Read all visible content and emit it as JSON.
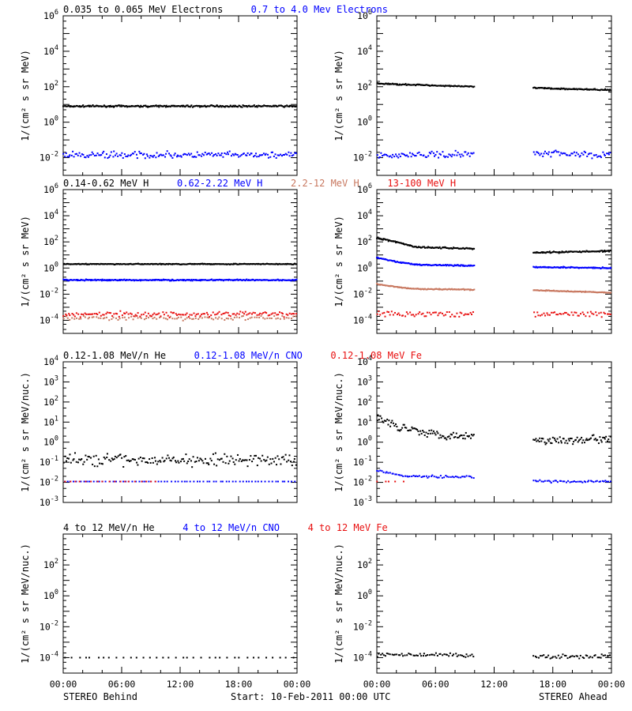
{
  "colors": {
    "black": "#000000",
    "blue": "#0000ff",
    "tan": "#c87860",
    "red": "#e81010"
  },
  "chart_data": [
    {
      "type": "scatter",
      "ylabel": "1/(cm² s sr MeV)",
      "ylog": true,
      "ylim_exp": [
        -3,
        6
      ],
      "ytick_exps": [
        -2,
        0,
        2,
        4,
        6
      ],
      "title_parts": [
        {
          "text": "0.035 to 0.065 MeV Electrons",
          "color": "black"
        },
        {
          "text": "0.7 to 4.0 Mev Electrons",
          "color": "blue"
        }
      ],
      "behind": {
        "series": [
          {
            "name": "0.035 to 0.065 MeV Electrons",
            "color": "black",
            "segments": [
              {
                "x": [
                  0,
                  24
                ],
                "y": [
                  8,
                  8
                ]
              }
            ],
            "scatter": 0.04,
            "density": 4
          },
          {
            "name": "0.7 to 4.0 Mev Electrons",
            "color": "blue",
            "segments": [
              {
                "x": [
                  0,
                  24
                ],
                "y": [
                  0.014,
                  0.014
                ]
              }
            ],
            "scatter": 0.15,
            "density": 2.5
          }
        ]
      },
      "ahead": {
        "series": [
          {
            "name": "0.035 to 0.065 MeV Electrons",
            "color": "black",
            "segments": [
              {
                "x": [
                  0,
                  10
                ],
                "y": [
                  150,
                  100
                ]
              },
              {
                "x": [
                  16,
                  24
                ],
                "y": [
                  85,
                  65
                ]
              }
            ],
            "scatter": 0.03,
            "density": 4
          },
          {
            "name": "0.7 to 4.0 Mev Electrons",
            "color": "blue",
            "segments": [
              {
                "x": [
                  0,
                  10
                ],
                "y": [
                  0.013,
                  0.016
                ]
              },
              {
                "x": [
                  16,
                  24
                ],
                "y": [
                  0.02,
                  0.014
                ]
              }
            ],
            "scatter": 0.15,
            "density": 2.5
          }
        ]
      }
    },
    {
      "type": "scatter",
      "ylabel": "1/(cm² s sr MeV)",
      "ylog": true,
      "ylim_exp": [
        -5,
        6
      ],
      "ytick_exps": [
        -4,
        -2,
        0,
        2,
        4,
        6
      ],
      "title_parts": [
        {
          "text": "0.14-0.62 MeV H",
          "color": "black"
        },
        {
          "text": "0.62-2.22 MeV H",
          "color": "blue"
        },
        {
          "text": "2.2-12 MeV H",
          "color": "tan"
        },
        {
          "text": "13-100 MeV H",
          "color": "red"
        }
      ],
      "behind": {
        "series": [
          {
            "name": "0.14-0.62 MeV H",
            "color": "black",
            "segments": [
              {
                "x": [
                  0,
                  24
                ],
                "y": [
                  2.0,
                  2.0
                ]
              }
            ],
            "scatter": 0.03,
            "density": 4
          },
          {
            "name": "0.62-2.22 MeV H",
            "color": "blue",
            "segments": [
              {
                "x": [
                  0,
                  24
                ],
                "y": [
                  0.12,
                  0.12
                ]
              }
            ],
            "scatter": 0.04,
            "density": 4
          },
          {
            "name": "2.2-12 MeV H",
            "color": "tan",
            "segments": [
              {
                "x": [
                  0,
                  24
                ],
                "y": [
                  0.00015,
                  0.00015
                ]
              }
            ],
            "scatter": 0.15,
            "density": 1.5
          },
          {
            "name": "13-100 MeV H",
            "color": "red",
            "segments": [
              {
                "x": [
                  0,
                  24
                ],
                "y": [
                  0.0003,
                  0.0003
                ]
              }
            ],
            "scatter": 0.18,
            "density": 2
          }
        ]
      },
      "ahead": {
        "series": [
          {
            "name": "0.14-0.62 MeV H",
            "color": "black",
            "segments": [
              {
                "x": [
                  0,
                  2,
                  4,
                  10
                ],
                "y": [
                  200,
                  100,
                  40,
                  30
                ]
              },
              {
                "x": [
                  16,
                  24
                ],
                "y": [
                  15,
                  20
                ]
              }
            ],
            "scatter": 0.05,
            "density": 4
          },
          {
            "name": "0.62-2.22 MeV H",
            "color": "blue",
            "segments": [
              {
                "x": [
                  0,
                  2,
                  4,
                  10
                ],
                "y": [
                  6,
                  3,
                  1.8,
                  1.5
                ]
              },
              {
                "x": [
                  16,
                  24
                ],
                "y": [
                  1.2,
                  1.0
                ]
              }
            ],
            "scatter": 0.04,
            "density": 4
          },
          {
            "name": "2.2-12 MeV H",
            "color": "tan",
            "segments": [
              {
                "x": [
                  0,
                  2,
                  4,
                  10
                ],
                "y": [
                  0.06,
                  0.035,
                  0.025,
                  0.022
                ]
              },
              {
                "x": [
                  16,
                  24
                ],
                "y": [
                  0.02,
                  0.013
                ]
              }
            ],
            "scatter": 0.03,
            "density": 4
          },
          {
            "name": "13-100 MeV H",
            "color": "red",
            "segments": [
              {
                "x": [
                  0,
                  10
                ],
                "y": [
                  0.0003,
                  0.0003
                ]
              },
              {
                "x": [
                  16,
                  24
                ],
                "y": [
                  0.0003,
                  0.0003
                ]
              }
            ],
            "scatter": 0.18,
            "density": 2
          }
        ]
      }
    },
    {
      "type": "scatter",
      "ylabel": "1/(cm² s sr MeV/nuc.)",
      "ylog": true,
      "ylim_exp": [
        -3,
        4
      ],
      "ytick_exps": [
        -3,
        -2,
        -1,
        0,
        1,
        2,
        3,
        4
      ],
      "title_parts": [
        {
          "text": "0.12-1.08 MeV/n He",
          "color": "black"
        },
        {
          "text": "0.12-1.08 MeV/n CNO",
          "color": "blue"
        },
        {
          "text": "0.12-1.08 MeV Fe",
          "color": "red"
        }
      ],
      "behind": {
        "series": [
          {
            "name": "0.12-1.08 MeV/n He",
            "color": "black",
            "segments": [
              {
                "x": [
                  0,
                  24
                ],
                "y": [
                  0.13,
                  0.13
                ]
              }
            ],
            "scatter": 0.25,
            "density": 2.5
          },
          {
            "name": "0.12-1.08 MeV/n CNO",
            "color": "blue",
            "segments": [
              {
                "x": [
                  0,
                  24
                ],
                "y": [
                  0.011,
                  0.011
                ]
              }
            ],
            "scatter": 0.0,
            "density": 1
          },
          {
            "name": "0.12-1.08 MeV Fe",
            "color": "red",
            "segments": [
              {
                "x": [
                  0,
                  10
                ],
                "y": [
                  0.011,
                  0.011
                ]
              }
            ],
            "scatter": 0.0,
            "density": 0.6
          }
        ]
      },
      "ahead": {
        "series": [
          {
            "name": "0.12-1.08 MeV/n He",
            "color": "black",
            "segments": [
              {
                "x": [
                  0,
                  1,
                  3,
                  6,
                  10
                ],
                "y": [
                  15,
                  10,
                  5,
                  2.5,
                  2
                ]
              },
              {
                "x": [
                  16,
                  24
                ],
                "y": [
                  1.2,
                  1.5
                ]
              }
            ],
            "scatter": 0.18,
            "density": 3
          },
          {
            "name": "0.12-1.08 MeV/n CNO",
            "color": "blue",
            "segments": [
              {
                "x": [
                  0,
                  3,
                  10
                ],
                "y": [
                  0.04,
                  0.02,
                  0.018
                ]
              },
              {
                "x": [
                  16,
                  24
                ],
                "y": [
                  0.011,
                  0.011
                ]
              }
            ],
            "scatter": 0.05,
            "density": 2
          },
          {
            "name": "0.12-1.08 MeV Fe",
            "color": "red",
            "segments": [
              {
                "x": [
                  0,
                  3
                ],
                "y": [
                  0.011,
                  0.011
                ]
              }
            ],
            "scatter": 0.0,
            "density": 0.5
          }
        ]
      }
    },
    {
      "type": "scatter",
      "ylabel": "1/(cm² s sr MeV/nuc.)",
      "ylog": true,
      "ylim_exp": [
        -5,
        4
      ],
      "ytick_exps": [
        -4,
        -2,
        0,
        2
      ],
      "title_parts": [
        {
          "text": "4 to 12 MeV/n He",
          "color": "black"
        },
        {
          "text": "4 to 12 MeV/n CNO",
          "color": "blue"
        },
        {
          "text": "4 to 12 MeV Fe",
          "color": "red"
        }
      ],
      "behind": {
        "series": [
          {
            "name": "4 to 12 MeV/n He",
            "color": "black",
            "segments": [
              {
                "x": [
                  0,
                  24
                ],
                "y": [
                  0.0001,
                  0.0001
                ]
              }
            ],
            "scatter": 0.0,
            "density": 0.5
          }
        ]
      },
      "ahead": {
        "series": [
          {
            "name": "4 to 12 MeV/n He",
            "color": "black",
            "segments": [
              {
                "x": [
                  0,
                  10
                ],
                "y": [
                  0.00015,
                  0.00015
                ]
              },
              {
                "x": [
                  16,
                  24
                ],
                "y": [
                  0.00012,
                  0.00012
                ]
              }
            ],
            "scatter": 0.12,
            "density": 2
          }
        ]
      }
    }
  ],
  "x_axis": {
    "range_hours": [
      0,
      24
    ],
    "tick_hours": [
      0,
      6,
      12,
      18,
      24
    ],
    "tick_labels": [
      "00:00",
      "06:00",
      "12:00",
      "18:00",
      "00:00"
    ]
  },
  "footer": {
    "left": "STEREO Behind",
    "center": "Start: 10-Feb-2011 00:00 UTC",
    "right": "STEREO Ahead"
  }
}
